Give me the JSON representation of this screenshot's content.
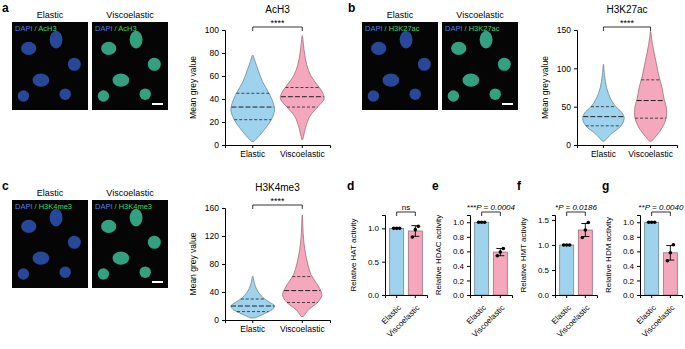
{
  "chart_data": [
    {
      "type": "violin",
      "panel": "a",
      "title": "AcH3",
      "y_label": "Mean grey value",
      "categories": [
        "Elastic",
        "Viscoelastic"
      ],
      "colors": [
        "#9fd2ec",
        "#f4a7bd"
      ],
      "ylim": [
        0,
        100
      ],
      "yticks": [
        0,
        20,
        40,
        60,
        80,
        100
      ],
      "annotation": "****",
      "images": {
        "labels": [
          "Elastic",
          "Viscoelastic"
        ],
        "stain": [
          "DAPI",
          "/ AcH3"
        ],
        "stain_colors": [
          "#4a7fe8",
          "#3fd66a"
        ]
      },
      "violins": [
        {
          "y": [
            3,
            8,
            15,
            22,
            30,
            36,
            45,
            55,
            65,
            72,
            78
          ],
          "w": [
            0.05,
            0.3,
            0.6,
            0.85,
            1.0,
            0.95,
            0.75,
            0.45,
            0.25,
            0.12,
            0.02
          ],
          "q1": 22,
          "median": 33,
          "q3": 45
        },
        {
          "y": [
            5,
            15,
            25,
            33,
            40,
            45,
            52,
            60,
            70,
            80,
            90,
            95
          ],
          "w": [
            0.03,
            0.15,
            0.35,
            0.7,
            1.0,
            0.95,
            0.7,
            0.4,
            0.2,
            0.1,
            0.04,
            0.01
          ],
          "q1": 33,
          "median": 42,
          "q3": 50
        }
      ]
    },
    {
      "type": "violin",
      "panel": "b",
      "title": "H3K27ac",
      "y_label": "Mean grey value",
      "categories": [
        "Elastic",
        "Viscoelastic"
      ],
      "colors": [
        "#9fd2ec",
        "#f4a7bd"
      ],
      "ylim": [
        0,
        150
      ],
      "yticks": [
        0,
        50,
        100,
        150
      ],
      "annotation": "****",
      "images": {
        "labels": [
          "Elastic",
          "Viscoelastic"
        ],
        "stain": [
          "DAPI",
          "/ H3K27ac"
        ],
        "stain_colors": [
          "#4a7fe8",
          "#3fd66a"
        ]
      },
      "violins": [
        {
          "y": [
            5,
            15,
            25,
            35,
            42,
            50,
            60,
            75,
            90,
            105
          ],
          "w": [
            0.05,
            0.4,
            0.85,
            1.0,
            0.9,
            0.6,
            0.35,
            0.15,
            0.06,
            0.01
          ],
          "q1": 25,
          "median": 37,
          "q3": 50
        },
        {
          "y": [
            5,
            20,
            35,
            50,
            60,
            75,
            90,
            110,
            130,
            148
          ],
          "w": [
            0.05,
            0.5,
            0.75,
            0.75,
            0.65,
            0.55,
            0.4,
            0.25,
            0.1,
            0.01
          ],
          "q1": 35,
          "median": 58,
          "q3": 85
        }
      ]
    },
    {
      "type": "violin",
      "panel": "c",
      "title": "H3K4me3",
      "y_label": "Mean grey value",
      "categories": [
        "Elastic",
        "Viscoelastic"
      ],
      "colors": [
        "#9fd2ec",
        "#f4a7bd"
      ],
      "ylim": [
        0,
        160
      ],
      "yticks": [
        0,
        40,
        80,
        120,
        160
      ],
      "annotation": "****",
      "images": {
        "labels": [
          "Elastic",
          "Viscoelastic"
        ],
        "stain": [
          "DAPI",
          "/ H3K4me3"
        ],
        "stain_colors": [
          "#4a7fe8",
          "#3fd66a"
        ]
      },
      "violins": [
        {
          "y": [
            3,
            10,
            15,
            20,
            25,
            30,
            40,
            50,
            62
          ],
          "w": [
            0.1,
            0.6,
            0.9,
            1.0,
            0.8,
            0.55,
            0.25,
            0.1,
            0.02
          ],
          "q1": 12,
          "median": 20,
          "q3": 30
        },
        {
          "y": [
            5,
            15,
            25,
            35,
            45,
            55,
            65,
            80,
            100,
            120,
            150
          ],
          "w": [
            0.05,
            0.3,
            0.7,
            0.9,
            0.8,
            0.6,
            0.4,
            0.25,
            0.12,
            0.05,
            0.01
          ],
          "q1": 25,
          "median": 42,
          "q3": 62
        }
      ]
    },
    {
      "type": "bar",
      "panel": "d",
      "y_label": "Relative HAT activity",
      "categories": [
        "Elastic",
        "Viscoelastic"
      ],
      "colors": [
        "#9fd2ec",
        "#f4a7bd"
      ],
      "values": [
        1,
        0.96
      ],
      "errors": [
        0,
        0.08
      ],
      "points": [
        [
          1,
          1,
          1
        ],
        [
          0.87,
          0.98,
          1.03
        ]
      ],
      "ylim": [
        0,
        1.2
      ],
      "yticks": [
        {
          "value": 0,
          "label": "0.0"
        },
        {
          "value": 0.5,
          "label": "0.5"
        },
        {
          "value": 1,
          "label": "1.0"
        }
      ],
      "annotation": "ns"
    },
    {
      "type": "bar",
      "panel": "e",
      "y_label": "Relative HDAC activity",
      "categories": [
        "Elastic",
        "Viscoelastic"
      ],
      "colors": [
        "#9fd2ec",
        "#f4a7bd"
      ],
      "values": [
        1,
        0.59
      ],
      "errors": [
        0,
        0.05
      ],
      "points": [
        [
          1,
          1,
          1
        ],
        [
          0.54,
          0.59,
          0.64
        ]
      ],
      "ylim": [
        0,
        1.1
      ],
      "yticks": [
        {
          "value": 0,
          "label": "0.0"
        },
        {
          "value": 0.2,
          "label": "0.2"
        },
        {
          "value": 0.4,
          "label": "0.4"
        },
        {
          "value": 0.6,
          "label": "0.6"
        },
        {
          "value": 0.8,
          "label": "0.8"
        },
        {
          "value": 1,
          "label": "1.0"
        }
      ],
      "annotation": "***",
      "p_value": "P = 0.0004"
    },
    {
      "type": "bar",
      "panel": "f",
      "y_label": "Relative HMT activity",
      "categories": [
        "Elastic",
        "Viscoelastic"
      ],
      "colors": [
        "#9fd2ec",
        "#f4a7bd"
      ],
      "values": [
        1,
        1.3
      ],
      "errors": [
        0,
        0.13
      ],
      "points": [
        [
          1,
          1,
          1
        ],
        [
          1.15,
          1.3,
          1.45
        ]
      ],
      "ylim": [
        0,
        1.6
      ],
      "yticks": [
        {
          "value": 0,
          "label": "0.0"
        },
        {
          "value": 0.5,
          "label": "0.5"
        },
        {
          "value": 1,
          "label": "1.0"
        },
        {
          "value": 1.5,
          "label": "1.5"
        }
      ],
      "annotation": "*",
      "p_value": "P = 0.0186"
    },
    {
      "type": "bar",
      "panel": "g",
      "y_label": "Relative HDM activity",
      "categories": [
        "Elastic",
        "Viscoelastic"
      ],
      "colors": [
        "#9fd2ec",
        "#f4a7bd"
      ],
      "values": [
        1,
        0.58
      ],
      "errors": [
        0,
        0.1
      ],
      "points": [
        [
          1,
          1,
          1
        ],
        [
          0.47,
          0.58,
          0.69
        ]
      ],
      "ylim": [
        0,
        1.1
      ],
      "yticks": [
        {
          "value": 0,
          "label": "0.0"
        },
        {
          "value": 0.2,
          "label": "0.2"
        },
        {
          "value": 0.4,
          "label": "0.4"
        },
        {
          "value": 0.6,
          "label": "0.6"
        },
        {
          "value": 0.8,
          "label": "0.8"
        },
        {
          "value": 1,
          "label": "1.0"
        }
      ],
      "annotation": "**",
      "p_value": "P = 0.0040"
    }
  ]
}
